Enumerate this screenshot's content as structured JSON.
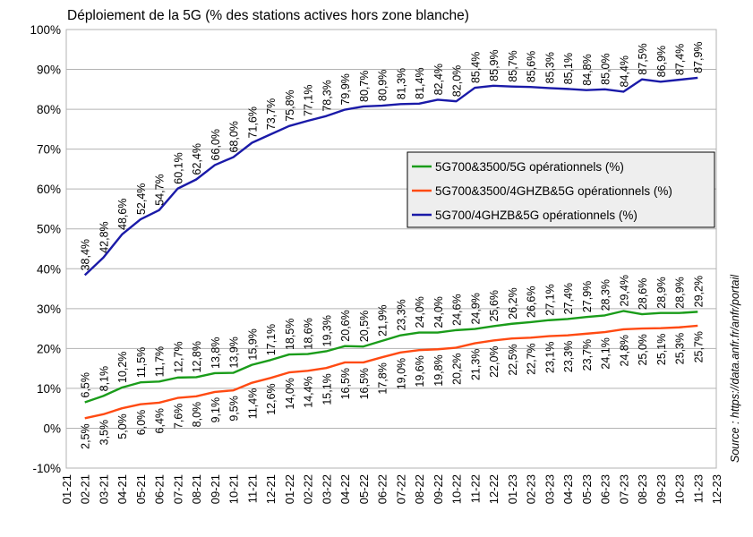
{
  "chart_data": {
    "type": "line",
    "title": "Déploiement de la 5G (% des stations actives hors zone blanche)",
    "source": "Source : https://data.anfr.fr/anfr/portail",
    "categories": [
      "01-21",
      "02-21",
      "03-21",
      "04-21",
      "05-21",
      "06-21",
      "07-21",
      "08-21",
      "09-21",
      "10-21",
      "11-21",
      "12-21",
      "01-22",
      "02-22",
      "03-22",
      "04-22",
      "05-22",
      "06-22",
      "07-22",
      "08-22",
      "09-22",
      "10-22",
      "11-22",
      "12-22",
      "01-23",
      "02-23",
      "03-23",
      "04-23",
      "05-23",
      "06-23",
      "07-23",
      "08-23",
      "09-23",
      "10-23",
      "11-23",
      "12-23"
    ],
    "y_tick_labels": [
      "-10%",
      "0%",
      "10%",
      "20%",
      "30%",
      "40%",
      "50%",
      "60%",
      "70%",
      "80%",
      "90%",
      "100%"
    ],
    "ylim": [
      -10,
      100
    ],
    "grid": true,
    "legend_position": "right-middle",
    "series": [
      {
        "name": "5G700&3500/5G opérationnels (%)",
        "color": "#1a9c1a",
        "values": [
          null,
          6.5,
          8.1,
          10.2,
          11.5,
          11.7,
          12.7,
          12.8,
          13.8,
          13.9,
          15.9,
          17.1,
          18.5,
          18.6,
          19.3,
          20.6,
          20.5,
          21.9,
          23.3,
          24.0,
          24.0,
          24.6,
          24.9,
          25.6,
          26.2,
          26.6,
          27.1,
          27.4,
          27.9,
          28.3,
          29.4,
          28.6,
          28.9,
          28.9,
          29.2,
          null
        ],
        "labels": [
          "",
          "6,5%",
          "8,1%",
          "10,2%",
          "11,5%",
          "11,7%",
          "12,7%",
          "12,8%",
          "13,8%",
          "13,9%",
          "15,9%",
          "17,1%",
          "18,5%",
          "18,6%",
          "19,3%",
          "20,6%",
          "20,5%",
          "21,9%",
          "23,3%",
          "24,0%",
          "24,0%",
          "24,6%",
          "24,9%",
          "25,6%",
          "26,2%",
          "26,6%",
          "27,1%",
          "27,4%",
          "27,9%",
          "28,3%",
          "29,4%",
          "28,6%",
          "28,9%",
          "28,9%",
          "29,2%",
          ""
        ]
      },
      {
        "name": "5G700&3500/4GHZB&5G opérationnels (%)",
        "color": "#ff4a12",
        "values": [
          null,
          2.5,
          3.5,
          5.0,
          6.0,
          6.4,
          7.6,
          8.0,
          9.1,
          9.5,
          11.4,
          12.6,
          14.0,
          14.4,
          15.1,
          16.5,
          16.5,
          17.8,
          19.0,
          19.6,
          19.8,
          20.2,
          21.3,
          22.0,
          22.5,
          22.7,
          23.1,
          23.3,
          23.7,
          24.1,
          24.8,
          25.0,
          25.1,
          25.3,
          25.7,
          null
        ],
        "labels": [
          "",
          "2,5%",
          "3,5%",
          "5,0%",
          "6,0%",
          "6,4%",
          "7,6%",
          "8,0%",
          "9,1%",
          "9,5%",
          "11,4%",
          "12,6%",
          "14,0%",
          "14,4%",
          "15,1%",
          "16,5%",
          "16,5%",
          "17,8%",
          "19,0%",
          "19,6%",
          "19,8%",
          "20,2%",
          "21,3%",
          "22,0%",
          "22,5%",
          "22,7%",
          "23,1%",
          "23,3%",
          "23,7%",
          "24,1%",
          "24,8%",
          "25,0%",
          "25,1%",
          "25,3%",
          "25,7%",
          ""
        ]
      },
      {
        "name": "5G700/4GHZB&5G opérationnels (%)",
        "color": "#1a1aa8",
        "values": [
          null,
          38.4,
          42.8,
          48.6,
          52.4,
          54.7,
          60.1,
          62.4,
          66.0,
          68.0,
          71.6,
          73.7,
          75.8,
          77.1,
          78.3,
          79.9,
          80.7,
          80.9,
          81.3,
          81.4,
          82.4,
          82.0,
          85.4,
          85.9,
          85.7,
          85.6,
          85.3,
          85.1,
          84.8,
          85.0,
          84.4,
          87.5,
          86.9,
          87.4,
          87.9,
          null
        ],
        "labels": [
          "",
          "38,4%",
          "42,8%",
          "48,6%",
          "52,4%",
          "54,7%",
          "60,1%",
          "62,4%",
          "66,0%",
          "68,0%",
          "71,6%",
          "73,7%",
          "75,8%",
          "77,1%",
          "78,3%",
          "79,9%",
          "80,7%",
          "80,9%",
          "81,3%",
          "81,4%",
          "82,4%",
          "82,0%",
          "85,4%",
          "85,9%",
          "85,7%",
          "85,6%",
          "85,3%",
          "85,1%",
          "84,8%",
          "85,0%",
          "84,4%",
          "87,5%",
          "86,9%",
          "87,4%",
          "87,9%",
          ""
        ]
      }
    ]
  }
}
